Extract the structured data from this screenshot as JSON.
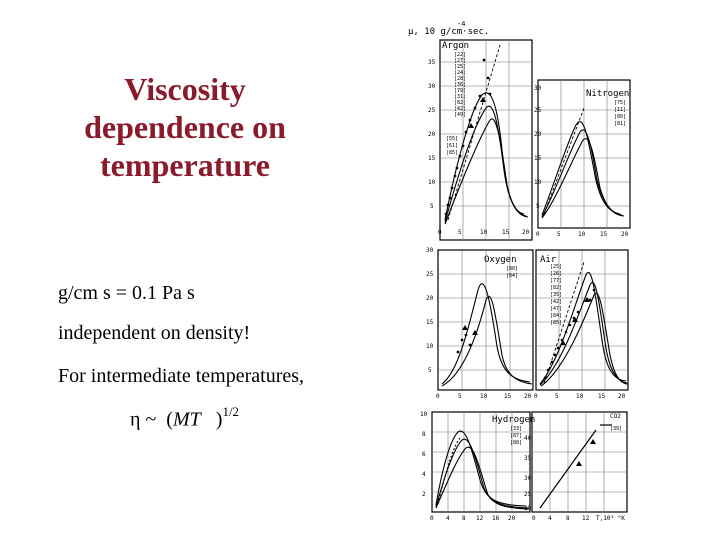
{
  "title": {
    "lines": [
      "Viscosity",
      "dependence on",
      "temperature"
    ]
  },
  "body": {
    "units_line": "g/cm s =  0.1 Pa s",
    "density_line": "independent on density!",
    "intermediate_line": "For intermediate temperatures,",
    "formula": {
      "eta": "η",
      "tilde": "~",
      "open": "(",
      "mt": "MT",
      "close": ")",
      "exponent": "1/2"
    }
  },
  "figure": {
    "unit_label": "μ, 10  g/cm·sec.",
    "unit_exp": "-4",
    "panels": {
      "argon": {
        "name": "Argon",
        "refs": [
          "[22]",
          "[27]",
          "[25]",
          "[24]",
          "[28]",
          "[36]",
          "[79]",
          "[31]",
          "[82]",
          "[42]",
          "[49]",
          "[55]",
          "[61]",
          "[85]"
        ],
        "yticks": [
          "35",
          "30",
          "25",
          "20",
          "15",
          "10",
          "5"
        ],
        "xticks": [
          "0",
          "5",
          "10",
          "15",
          "20"
        ]
      },
      "nitrogen": {
        "name": "Nitrogen",
        "refs": [
          "[75]",
          "[11]",
          "[80]",
          "[81]"
        ],
        "yticks": [
          "30",
          "25",
          "20",
          "15",
          "10",
          "5"
        ],
        "xticks": [
          "0",
          "5",
          "10",
          "15",
          "20"
        ]
      },
      "oxygen": {
        "name": "Oxygen",
        "refs": [
          "[80]",
          "[84]"
        ],
        "yticks": [
          "30",
          "25",
          "20",
          "15",
          "10",
          "5"
        ],
        "xticks": [
          "0",
          "5",
          "10",
          "15",
          "20"
        ]
      },
      "air": {
        "name": "Air",
        "refs": [
          "[25]",
          "[26]",
          "[77]",
          "[82]",
          "[35]",
          "[42]",
          "[47]",
          "[84]",
          "[85]"
        ],
        "xticks": [
          "0",
          "5",
          "10",
          "15",
          "20"
        ]
      },
      "hydrogen": {
        "name": "Hydrogen",
        "refs": [
          "[33]",
          "[87]",
          "[88]"
        ],
        "yticks": [
          "10",
          "8",
          "6",
          "4",
          "2"
        ],
        "xticks": [
          "0",
          "4",
          "8",
          "12",
          "16",
          "20"
        ]
      },
      "co2": {
        "name": "CO2",
        "refs": [
          "[39]"
        ],
        "yticks": [
          "40",
          "35",
          "30",
          "25",
          "20"
        ],
        "xticks": [
          "0",
          "4",
          "8",
          "12",
          "T,10³ °K"
        ]
      }
    }
  }
}
